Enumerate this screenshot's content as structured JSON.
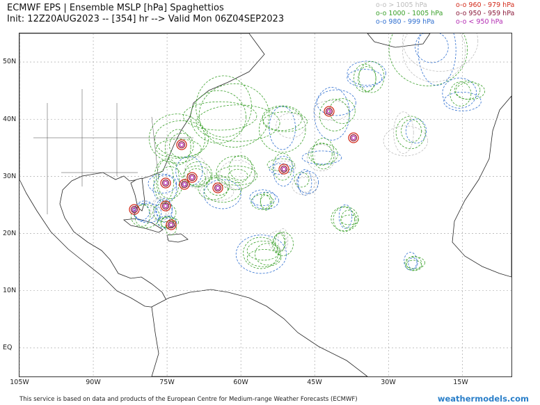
{
  "title_line1": "ECMWF EPS | Ensemble MSLP [hPa] Spaghettios",
  "title_line2": "Init: 12Z20AUG2023 -- [354] hr --> Valid Mon 06Z04SEP2023",
  "legend": [
    {
      "text": "o-o > 1005 hPa",
      "color": "#bdbdbd"
    },
    {
      "text": "o-o 1000 - 1005 hPa",
      "color": "#3aa02a"
    },
    {
      "text": "o-o 980 - 999 hPa",
      "color": "#2f6fd0"
    },
    {
      "text": "o-o 960 - 979 hPa",
      "color": "#d32a1a"
    },
    {
      "text": "o-o 950 - 959 hPa",
      "color": "#8b1a3a"
    },
    {
      "text": "o-o < 950 hPa",
      "color": "#b22ab2"
    }
  ],
  "lat_labels": [
    "50N",
    "40N",
    "30N",
    "20N",
    "10N",
    "EQ"
  ],
  "lon_labels": [
    "105W",
    "90W",
    "75W",
    "60W",
    "45W",
    "30W",
    "15W"
  ],
  "footer": "This service is based on data and products of the European Centre for Medium-range Weather Forecasts (ECMWF)",
  "brand": "weathermodels.com",
  "map": {
    "lon_range": [
      -105,
      -5
    ],
    "lat_range": [
      -5,
      55
    ],
    "graticule_step_deg": 10,
    "grid": true,
    "land_color": "#ffffff",
    "outline_color": "#222222"
  }
}
